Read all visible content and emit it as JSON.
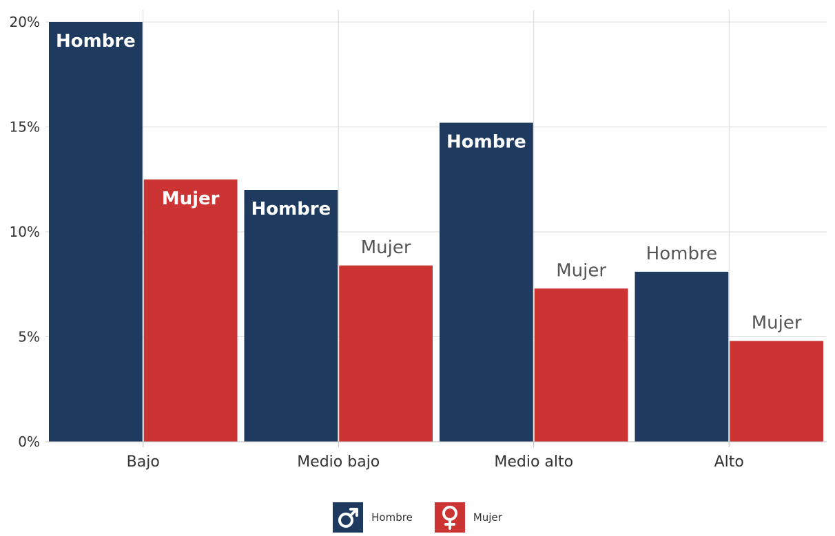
{
  "chart_data": {
    "type": "bar",
    "categories": [
      "Bajo",
      "Medio bajo",
      "Medio alto",
      "Alto"
    ],
    "series": [
      {
        "name": "Hombre",
        "values": [
          20.0,
          12.0,
          15.2,
          8.1
        ],
        "color": "#1f3a5f"
      },
      {
        "name": "Mujer",
        "values": [
          12.5,
          8.4,
          7.3,
          4.8
        ],
        "color": "#cc3333"
      }
    ],
    "yticks": [
      "0%",
      "5%",
      "10%",
      "15%",
      "20%"
    ],
    "ytick_values": [
      0,
      5,
      10,
      15,
      20
    ],
    "ylim": [
      0,
      20
    ],
    "grid": true,
    "legend_position": "bottom-center",
    "bar_labels": [
      [
        "Hombre",
        "Mujer"
      ],
      [
        "Hombre",
        "Mujer"
      ],
      [
        "Hombre",
        "Mujer"
      ],
      [
        "Hombre",
        "Mujer"
      ]
    ],
    "label_inside": [
      [
        true,
        true
      ],
      [
        true,
        false
      ],
      [
        true,
        false
      ],
      [
        false,
        false
      ]
    ]
  },
  "legend": {
    "items": [
      {
        "label": "Hombre",
        "icon": "male-symbol-icon",
        "glyph": "♂",
        "color": "#1f3a5f"
      },
      {
        "label": "Mujer",
        "icon": "female-symbol-icon",
        "glyph": "♀",
        "color": "#cc3333"
      }
    ]
  }
}
